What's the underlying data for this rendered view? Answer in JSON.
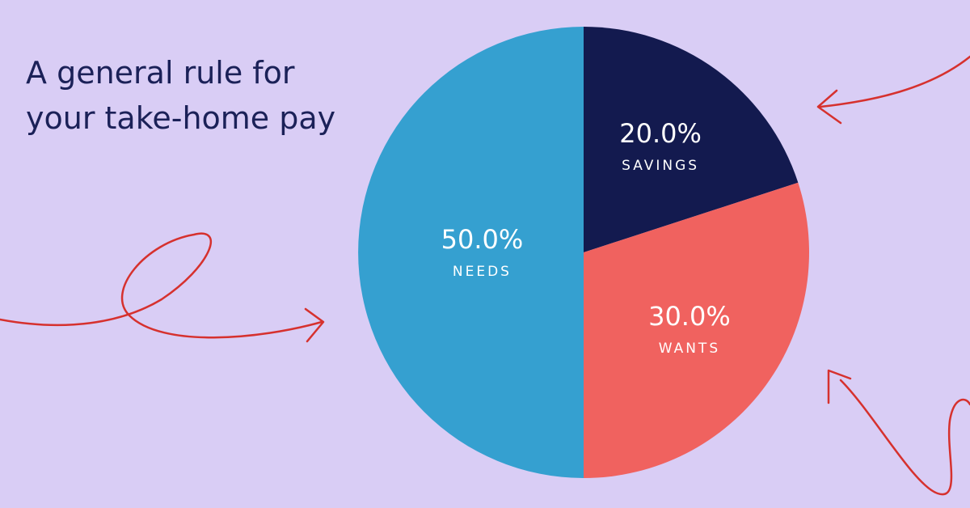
{
  "chart_data": {
    "type": "pie",
    "title": "A general rule for your take-home pay",
    "categories": [
      "SAVINGS",
      "WANTS",
      "NEEDS"
    ],
    "values": [
      20,
      30,
      50
    ],
    "value_labels": [
      "20.0%",
      "30.0%",
      "50.0%"
    ],
    "colors": [
      "#131a4f",
      "#f0625f",
      "#35a0d0"
    ]
  }
}
